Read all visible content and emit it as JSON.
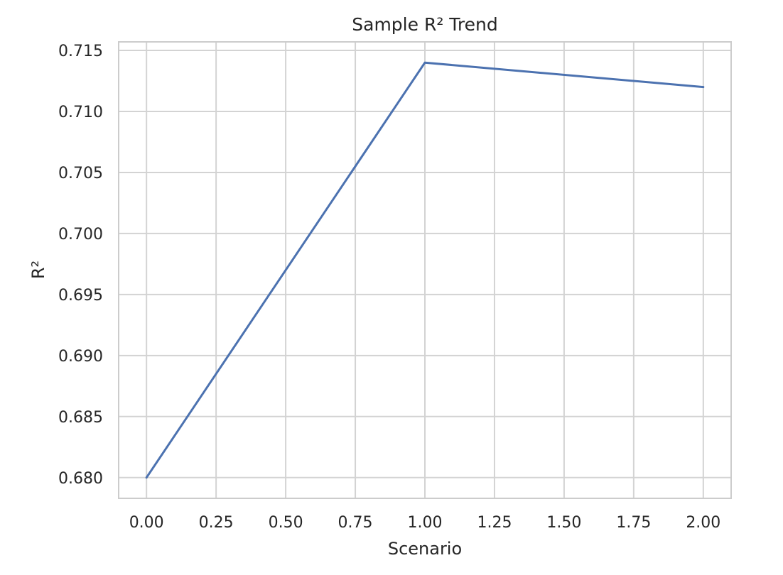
{
  "chart_data": {
    "type": "line",
    "title": "Sample R² Trend",
    "xlabel": "Scenario",
    "ylabel": "R²",
    "x": [
      0,
      1,
      2
    ],
    "series": [
      {
        "values": [
          0.68,
          0.714,
          0.712
        ]
      }
    ],
    "xlim": [
      -0.1,
      2.1
    ],
    "ylim": [
      0.6783,
      0.7157
    ],
    "x_ticks": [
      0.0,
      0.25,
      0.5,
      0.75,
      1.0,
      1.25,
      1.5,
      1.75,
      2.0
    ],
    "x_tick_labels": [
      "0.00",
      "0.25",
      "0.50",
      "0.75",
      "1.00",
      "1.25",
      "1.50",
      "1.75",
      "2.00"
    ],
    "y_ticks": [
      0.68,
      0.685,
      0.69,
      0.695,
      0.7,
      0.705,
      0.71,
      0.715
    ],
    "y_tick_labels": [
      "0.680",
      "0.685",
      "0.690",
      "0.695",
      "0.700",
      "0.705",
      "0.710",
      "0.715"
    ],
    "grid": true,
    "colors": {
      "line": "#4c72b0",
      "grid": "#d3d3d3",
      "frame": "#cccccc",
      "text": "#262626"
    }
  }
}
